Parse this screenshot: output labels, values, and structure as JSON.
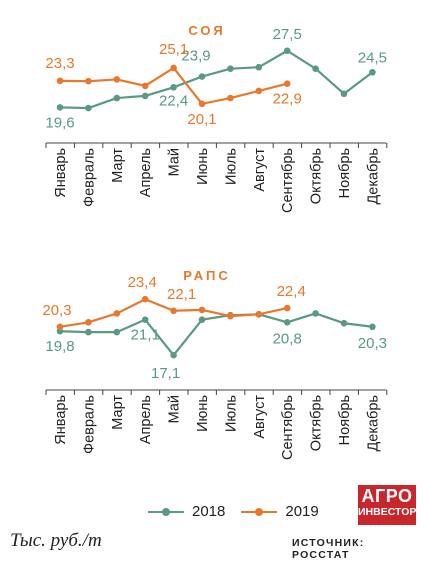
{
  "colors": {
    "series_2018": "#5a9a80",
    "series_2019": "#e8782c",
    "title": "#e8782c",
    "axis": "#444444",
    "brand": "#c8262b"
  },
  "legend": {
    "y2018": "2018",
    "y2019": "2019"
  },
  "footer": {
    "unit": "Тыс. руб./т",
    "source": "ИСТОЧНИК: РОССТАТ",
    "logo_line1": "АГРО",
    "logo_line2": "ИНВЕСТОР"
  },
  "chart_data": [
    {
      "type": "line",
      "title": "СОЯ",
      "categories": [
        "Январь",
        "Февраль",
        "Март",
        "Апрель",
        "Май",
        "Июнь",
        "Июль",
        "Август",
        "Сентябрь",
        "Октябрь",
        "Ноябрь",
        "Декабрь"
      ],
      "ylim": [
        17,
        29
      ],
      "series": [
        {
          "name": "2018",
          "values": [
            19.6,
            19.5,
            20.9,
            21.2,
            22.4,
            23.9,
            25.0,
            25.2,
            27.5,
            25.0,
            21.5,
            24.5
          ]
        },
        {
          "name": "2019",
          "values": [
            23.3,
            23.25,
            23.5,
            22.6,
            25.1,
            20.1,
            20.9,
            21.9,
            22.9,
            null,
            null,
            null
          ]
        }
      ],
      "data_labels": [
        {
          "series": 0,
          "index": 0,
          "text": "19,6"
        },
        {
          "series": 0,
          "index": 4,
          "text": "22,4"
        },
        {
          "series": 0,
          "index": 5,
          "text": "23,9"
        },
        {
          "series": 0,
          "index": 8,
          "text": "27,5"
        },
        {
          "series": 0,
          "index": 11,
          "text": "24,5"
        },
        {
          "series": 1,
          "index": 0,
          "text": "23,3"
        },
        {
          "series": 1,
          "index": 4,
          "text": "25,1"
        },
        {
          "series": 1,
          "index": 5,
          "text": "20,1"
        },
        {
          "series": 1,
          "index": 8,
          "text": "22,9"
        }
      ]
    },
    {
      "type": "line",
      "title": "РАПС",
      "categories": [
        "Январь",
        "Февраль",
        "Март",
        "Апрель",
        "Май",
        "Июнь",
        "Июль",
        "Август",
        "Сентябрь",
        "Октябрь",
        "Ноябрь",
        "Декабрь"
      ],
      "ylim": [
        16,
        25
      ],
      "series": [
        {
          "name": "2018",
          "values": [
            19.8,
            19.7,
            19.7,
            21.1,
            17.1,
            21.1,
            21.6,
            21.7,
            20.8,
            21.8,
            20.7,
            20.3
          ]
        },
        {
          "name": "2019",
          "values": [
            20.3,
            20.8,
            21.8,
            23.4,
            22.1,
            22.2,
            21.5,
            21.7,
            22.4,
            null,
            null,
            null
          ]
        }
      ],
      "data_labels": [
        {
          "series": 0,
          "index": 0,
          "text": "19,8"
        },
        {
          "series": 0,
          "index": 3,
          "text": "21,1"
        },
        {
          "series": 0,
          "index": 4,
          "text": "17,1"
        },
        {
          "series": 0,
          "index": 8,
          "text": "20,8"
        },
        {
          "series": 0,
          "index": 11,
          "text": "20,3"
        },
        {
          "series": 1,
          "index": 0,
          "text": "20,3"
        },
        {
          "series": 1,
          "index": 3,
          "text": "23,4"
        },
        {
          "series": 1,
          "index": 4,
          "text": "22,1"
        },
        {
          "series": 1,
          "index": 8,
          "text": "22,4"
        }
      ]
    }
  ]
}
